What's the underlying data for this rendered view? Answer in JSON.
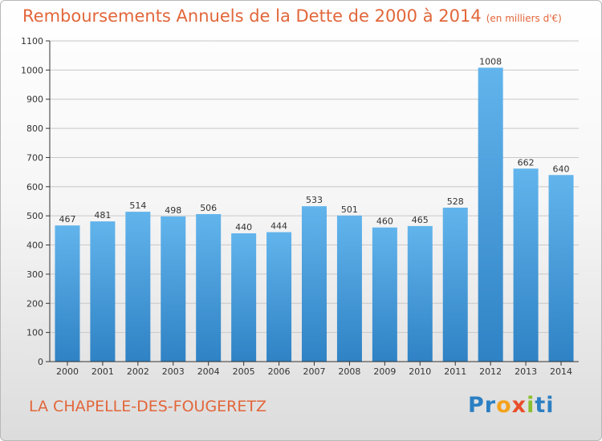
{
  "header": {
    "title": "Remboursements Annuels de la Dette de 2000 à 2014",
    "unit_note": "(en milliers d'€)"
  },
  "footer": {
    "commune": "LA CHAPELLE-DES-FOUGERETZ",
    "logo_text": "Proxiti",
    "logo_parts": [
      "Pr",
      "o",
      "x",
      "i",
      "ti"
    ]
  },
  "colors": {
    "bar_light": "#62b4ec",
    "bar_dark": "#2f82c4",
    "title": "#e2663a",
    "axis": "#333333",
    "grid": "#c8c8c8"
  },
  "chart_data": {
    "type": "bar",
    "title": "Remboursements Annuels de la Dette de 2000 à 2014",
    "subtitle": "(en milliers d'€)",
    "xlabel": "",
    "ylabel": "",
    "categories": [
      "2000",
      "2001",
      "2002",
      "2003",
      "2004",
      "2005",
      "2006",
      "2007",
      "2008",
      "2009",
      "2010",
      "2011",
      "2012",
      "2013",
      "2014"
    ],
    "values": [
      467,
      481,
      514,
      498,
      506,
      440,
      444,
      533,
      501,
      460,
      465,
      528,
      1008,
      662,
      640
    ],
    "ylim": [
      0,
      1100
    ],
    "yticks": [
      0,
      100,
      200,
      300,
      400,
      500,
      600,
      700,
      800,
      900,
      1000,
      1100
    ],
    "grid": true,
    "legend": "none"
  }
}
